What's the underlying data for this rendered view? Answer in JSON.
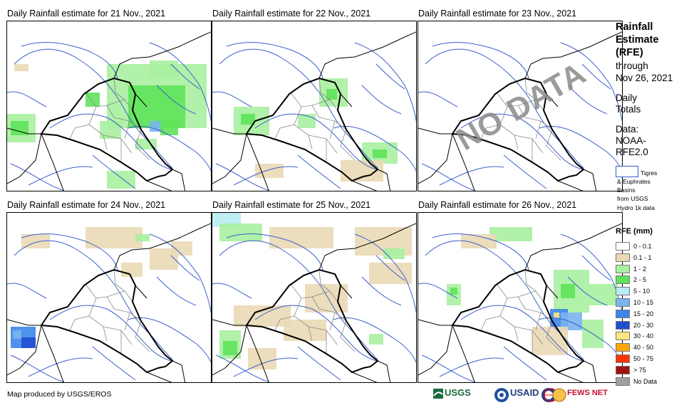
{
  "panels": [
    {
      "title": "Daily Rainfall estimate for 21 Nov., 2021",
      "nodata": ""
    },
    {
      "title": "Daily Rainfall estimate for 22 Nov., 2021",
      "nodata": ""
    },
    {
      "title": "Daily Rainfall estimate for 23 Nov., 2021",
      "nodata": "NO DATA"
    },
    {
      "title": "Daily Rainfall estimate for 24 Nov., 2021",
      "nodata": ""
    },
    {
      "title": "Daily Rainfall estimate for 25 Nov., 2021",
      "nodata": ""
    },
    {
      "title": "Daily Rainfall estimate for 26 Nov., 2021",
      "nodata": ""
    }
  ],
  "sidebar": {
    "title_lines": [
      "Rainfall",
      "Estimate",
      "(RFE)"
    ],
    "through": "through",
    "date": "Nov 26, 2021",
    "daily": "Daily",
    "totals": "Totals",
    "data_label": "Data:",
    "data_source_1": "NOAA-",
    "data_source_2": "RFE2.0",
    "basin_lines": [
      "Tigres",
      "& Euphrates",
      "Basins",
      "from USGS",
      "Hydro 1k data"
    ]
  },
  "legend": {
    "title": "RFE (mm)",
    "items": [
      {
        "label": "0 - 0.1",
        "color": "#ffffff"
      },
      {
        "label": "0.1 - 1",
        "color": "#ead9b5"
      },
      {
        "label": "1 - 2",
        "color": "#a8f0a0"
      },
      {
        "label": "2 - 5",
        "color": "#5fe35a"
      },
      {
        "label": "5 - 10",
        "color": "#b8ecf4"
      },
      {
        "label": "10 - 15",
        "color": "#7ab4ee"
      },
      {
        "label": "15 - 20",
        "color": "#3c86ea"
      },
      {
        "label": "20 - 30",
        "color": "#1f4fd0"
      },
      {
        "label": "30 - 40",
        "color": "#ffe680"
      },
      {
        "label": "40 - 50",
        "color": "#ffa500"
      },
      {
        "label": "50 - 75",
        "color": "#ff3300"
      },
      {
        "label": "> 75",
        "color": "#a01010"
      },
      {
        "label": "No Data",
        "color": "#a0a0a0"
      }
    ]
  },
  "footer": {
    "credit": "Map produced by USGS/EROS"
  },
  "logos": {
    "usgs": "USGS",
    "usaid": "USAID",
    "fewsnet": "FEWS NET"
  }
}
